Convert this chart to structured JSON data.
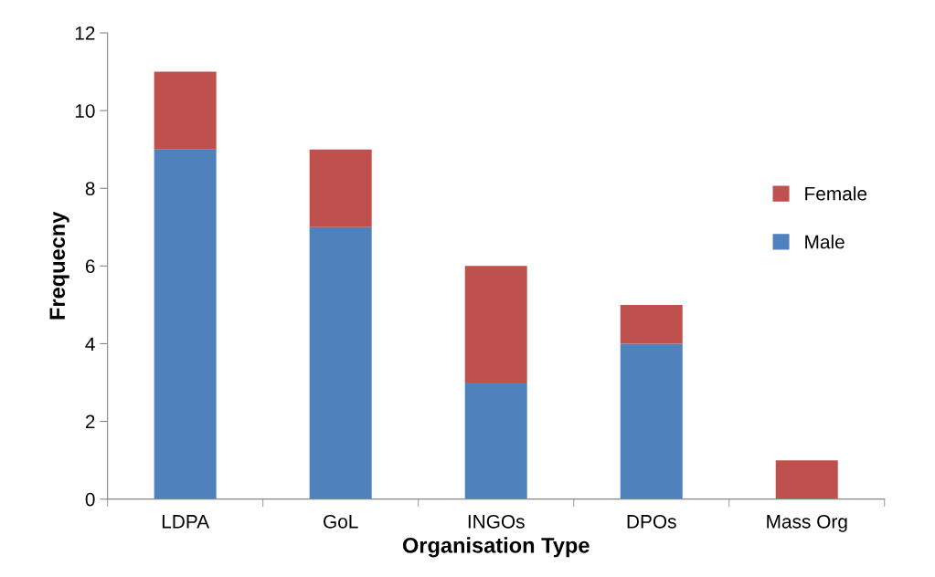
{
  "chart_data": {
    "type": "bar",
    "stacked": true,
    "xlabel": "Organisation Type",
    "ylabel": "Frequecny",
    "categories": [
      "LDPA",
      "GoL",
      "INGOs",
      "DPOs",
      "Mass Org"
    ],
    "series": [
      {
        "name": "Male",
        "color": "#4f81bd",
        "values": [
          9,
          7,
          3,
          4,
          0
        ]
      },
      {
        "name": "Female",
        "color": "#c0504d",
        "values": [
          2,
          2,
          3,
          1,
          1
        ]
      }
    ],
    "ylim": [
      0,
      12
    ],
    "yticks": [
      0,
      2,
      4,
      6,
      8,
      10,
      12
    ],
    "grid": false,
    "legend": "right"
  }
}
